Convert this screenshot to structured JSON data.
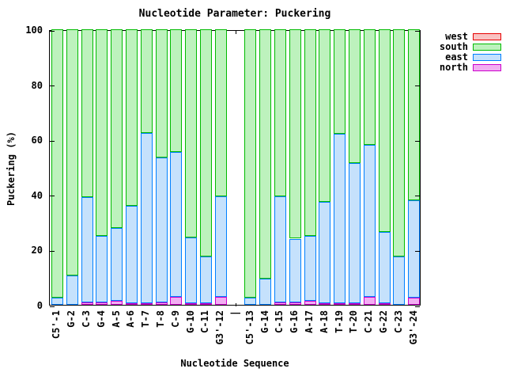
{
  "legend": {
    "items": [
      {
        "label": "west",
        "fill": "#f9c2c2",
        "border": "#e60000"
      },
      {
        "label": "south",
        "fill": "#bdf2bd",
        "border": "#00bb00"
      },
      {
        "label": "east",
        "fill": "#c5e1fc",
        "border": "#0080ff"
      },
      {
        "label": "north",
        "fill": "#f2aef2",
        "border": "#cc00cc"
      }
    ]
  },
  "chart_data": {
    "type": "bar",
    "stacked": true,
    "title": "Nucleotide Parameter: Puckering",
    "xlabel": "Nucleotide Sequence",
    "ylabel": "Puckering (%)",
    "ylim": [
      0,
      100
    ],
    "yticks": [
      0,
      20,
      40,
      60,
      80,
      100
    ],
    "grid": false,
    "legend_position": "top-right-outside",
    "categories": [
      "C5'-1",
      "G-2",
      "C-3",
      "G-4",
      "A-5",
      "A-6",
      "T-7",
      "T-8",
      "C-9",
      "G-10",
      "C-11",
      "G3'-12",
      "|",
      "C5'-13",
      "G-14",
      "C-15",
      "G-16",
      "A-17",
      "A-18",
      "T-19",
      "T-20",
      "C-21",
      "G-22",
      "C-23",
      "G3'-24"
    ],
    "stack_order": [
      "north",
      "east",
      "south",
      "west"
    ],
    "series": [
      {
        "name": "west",
        "fill": "#f9c2c2",
        "border": "#e60000",
        "values": [
          0,
          0,
          0,
          0,
          0,
          0,
          0,
          0,
          0,
          0,
          0,
          0,
          null,
          0,
          0,
          0,
          0,
          0,
          0,
          0,
          0,
          0,
          0,
          0,
          0
        ]
      },
      {
        "name": "south",
        "fill": "#bdf2bd",
        "border": "#00bb00",
        "values": [
          97.5,
          89.5,
          61,
          75,
          72,
          64,
          37.5,
          46.5,
          44.5,
          75.5,
          82.5,
          60.5,
          null,
          97.5,
          90.5,
          60.5,
          76,
          75,
          62.5,
          38,
          48.5,
          42,
          73.5,
          82.5,
          62
        ]
      },
      {
        "name": "east",
        "fill": "#c5e1fc",
        "border": "#0080ff",
        "values": [
          2.5,
          10.5,
          38,
          24,
          26.5,
          35.5,
          62,
          52.5,
          52.5,
          24,
          17,
          36.5,
          null,
          2.5,
          9.5,
          38.5,
          23,
          23.5,
          37,
          61.5,
          51,
          55,
          26,
          17.5,
          35.5
        ]
      },
      {
        "name": "north",
        "fill": "#f2aef2",
        "border": "#cc00cc",
        "values": [
          0,
          0,
          1,
          1,
          1.5,
          0.5,
          0.5,
          1,
          3,
          0.5,
          0.5,
          3,
          null,
          0,
          0,
          1,
          1,
          1.5,
          0.5,
          0.5,
          0.5,
          3,
          0.5,
          0,
          2.5
        ]
      }
    ]
  }
}
